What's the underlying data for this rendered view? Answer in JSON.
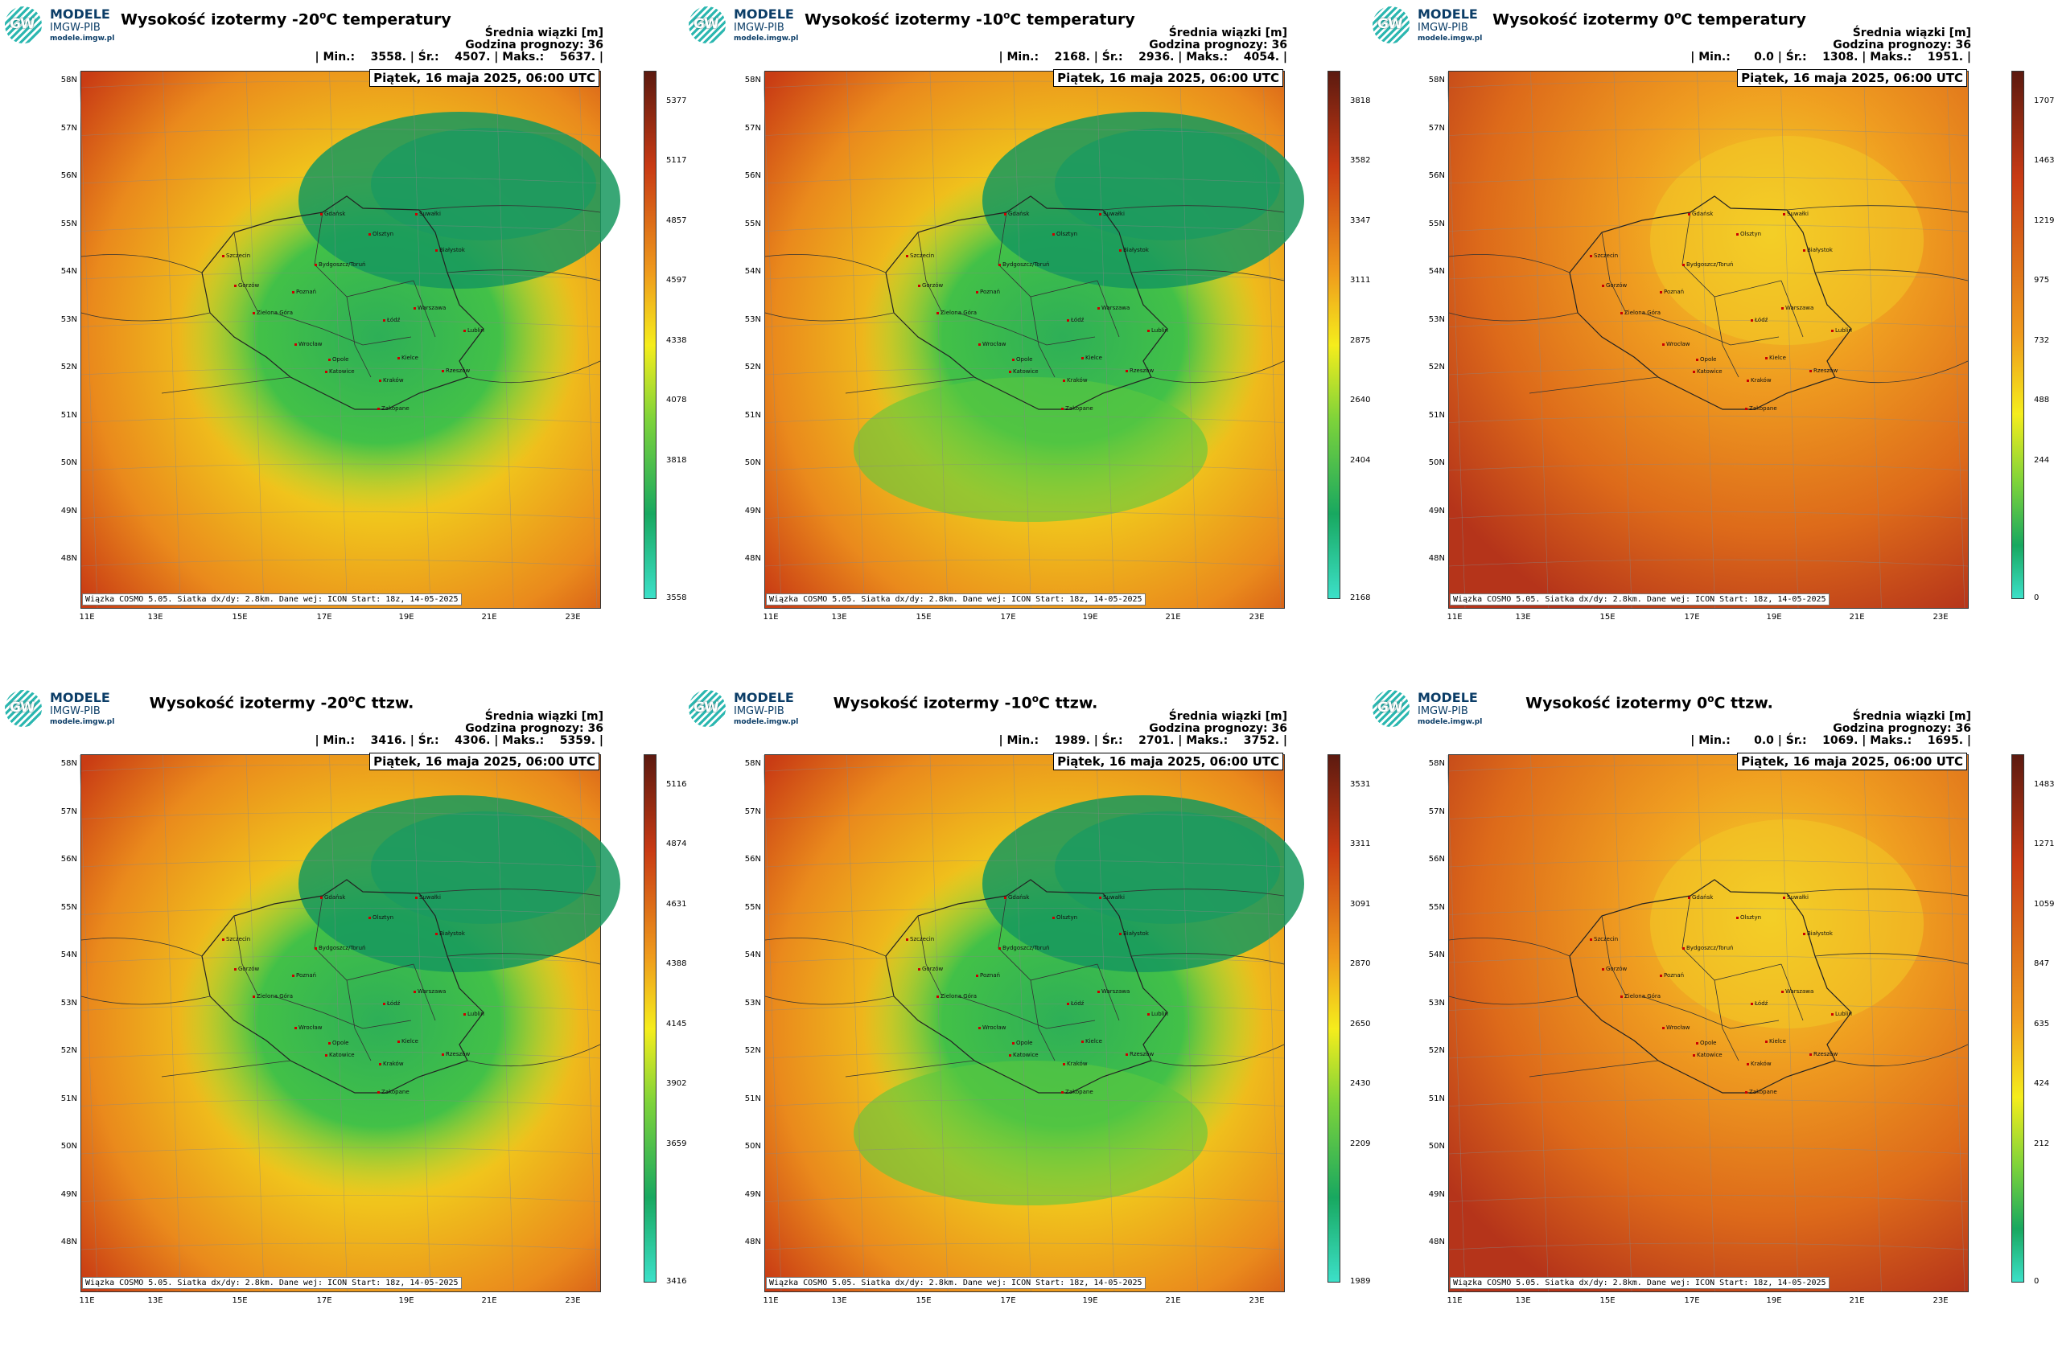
{
  "logo": {
    "mark": "GW",
    "line1": "MODELE",
    "line2": "IMGW-PIB",
    "line3": "modele.imgw.pl"
  },
  "lat_labels": [
    "58N",
    "57N",
    "56N",
    "55N",
    "54N",
    "53N",
    "52N",
    "51N",
    "50N",
    "49N",
    "48N"
  ],
  "lon_labels": [
    "11E",
    "13E",
    "15E",
    "17E",
    "19E",
    "21E",
    "23E"
  ],
  "cities": [
    "Gdańsk",
    "Olsztyn",
    "Suwałki",
    "Białystok",
    "Szczecin",
    "Bydgoszcz/Toruń",
    "Gorzów",
    "Poznań",
    "Warszawa",
    "Zielona Góra",
    "Łódź",
    "Lublin",
    "Wrocław",
    "Opole",
    "Kielce",
    "Rzeszów",
    "Katowice",
    "Kraków",
    "Zakopane"
  ],
  "footer": "Wiązka COSMO 5.05. Siatka dx/dy: 2.8km. Dane wej: ICON Start: 18z, 14-05-2025",
  "colors": {
    "low": "#3ce0c8",
    "mid_green": "#1fb454",
    "yellow": "#f5ed1c",
    "orange": "#ef9a1c",
    "red": "#cc3d14",
    "dark": "#5c1a10"
  },
  "panels": [
    {
      "title_pre": "Wysokość izotermy -20",
      "title_post": "C temperatury",
      "sup": "o",
      "avg": "Średnia wiązki [m]",
      "hour": "Godzina prognozy: 36",
      "stats": "| Min.:    3558. | Śr.:    4507. | Maks.:    5637. |",
      "date": "Piątek, 16 maja 2025, 06:00 UTC",
      "cbar": [
        "5377",
        "5117",
        "4857",
        "4597",
        "4338",
        "4078",
        "3818",
        "3558"
      ],
      "field": "cold20"
    },
    {
      "title_pre": "Wysokość izotermy -10",
      "title_post": "C temperatury",
      "sup": "o",
      "avg": "Średnia wiązki [m]",
      "hour": "Godzina prognozy: 36",
      "stats": "| Min.:    2168. | Śr.:    2936. | Maks.:    4054. |",
      "date": "Piątek, 16 maja 2025, 06:00 UTC",
      "cbar": [
        "3818",
        "3582",
        "3347",
        "3111",
        "2875",
        "2640",
        "2404",
        "2168"
      ],
      "field": "cold10"
    },
    {
      "title_pre": "Wysokość izotermy 0",
      "title_post": "C temperatury",
      "sup": "o",
      "avg": "Średnia wiązki [m]",
      "hour": "Godzina prognozy: 36",
      "stats": "| Min.:      0.0 | Śr.:    1308. | Maks.:    1951. |",
      "date": "Piątek, 16 maja 2025, 06:00 UTC",
      "cbar": [
        "1707",
        "1463",
        "1219",
        "975",
        "732",
        "488",
        "244",
        "0"
      ],
      "field": "warm0"
    },
    {
      "title_pre": "Wysokość izotermy -20",
      "title_post": "C ttzw.",
      "sup": "o",
      "avg": "Średnia wiązki [m]",
      "hour": "Godzina prognozy: 36",
      "stats": "| Min.:    3416. | Śr.:    4306. | Maks.:    5359. |",
      "date": "Piątek, 16 maja 2025, 06:00 UTC",
      "cbar": [
        "5116",
        "4874",
        "4631",
        "4388",
        "4145",
        "3902",
        "3659",
        "3416"
      ],
      "field": "cold20"
    },
    {
      "title_pre": "Wysokość izotermy -10",
      "title_post": "C ttzw.",
      "sup": "o",
      "avg": "Średnia wiązki [m]",
      "hour": "Godzina prognozy: 36",
      "stats": "| Min.:    1989. | Śr.:    2701. | Maks.:    3752. |",
      "date": "Piątek, 16 maja 2025, 06:00 UTC",
      "cbar": [
        "3531",
        "3311",
        "3091",
        "2870",
        "2650",
        "2430",
        "2209",
        "1989"
      ],
      "field": "cold10"
    },
    {
      "title_pre": "Wysokość izotermy 0",
      "title_post": "C ttzw.",
      "sup": "o",
      "avg": "Średnia wiązki [m]",
      "hour": "Godzina prognozy: 36",
      "stats": "| Min.:      0.0 | Śr.:    1069. | Maks.:    1695. |",
      "date": "Piątek, 16 maja 2025, 06:00 UTC",
      "cbar": [
        "1483",
        "1271",
        "1059",
        "847",
        "635",
        "424",
        "212",
        "0"
      ],
      "field": "warm0"
    }
  ]
}
